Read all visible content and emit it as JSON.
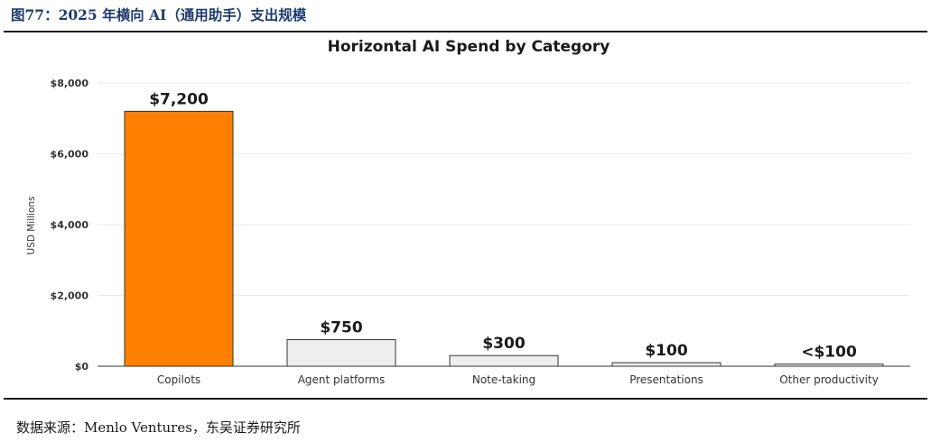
{
  "figure": {
    "title": "图77：2025 年横向 AI（通用助手）支出规模",
    "source": "数据来源：Menlo Ventures，东吴证券研究所"
  },
  "colors": {
    "highlight_bar": "#FF8000",
    "default_bar": "#EEEEEE",
    "bar_outline": "#333333",
    "gridline": "#EAEAEA",
    "axis_text": "#333333",
    "title_text": "#1A1A1A"
  },
  "chart_data": {
    "type": "bar",
    "title": "Horizontal AI Spend by Category",
    "xlabel": "",
    "ylabel": "USD Millions",
    "ylim": [
      0,
      8000
    ],
    "yticks": [
      0,
      2000,
      4000,
      6000,
      8000
    ],
    "ytick_labels": [
      "$0",
      "$2,000",
      "$4,000",
      "$6,000",
      "$8,000"
    ],
    "grid": true,
    "categories": [
      "Copilots",
      "Agent platforms",
      "Note-taking",
      "Presentations",
      "Other productivity"
    ],
    "values": [
      7200,
      750,
      300,
      100,
      60
    ],
    "data_labels": [
      "$7,200",
      "$750",
      "$300",
      "$100",
      "<$100"
    ],
    "highlight_index": 0
  }
}
